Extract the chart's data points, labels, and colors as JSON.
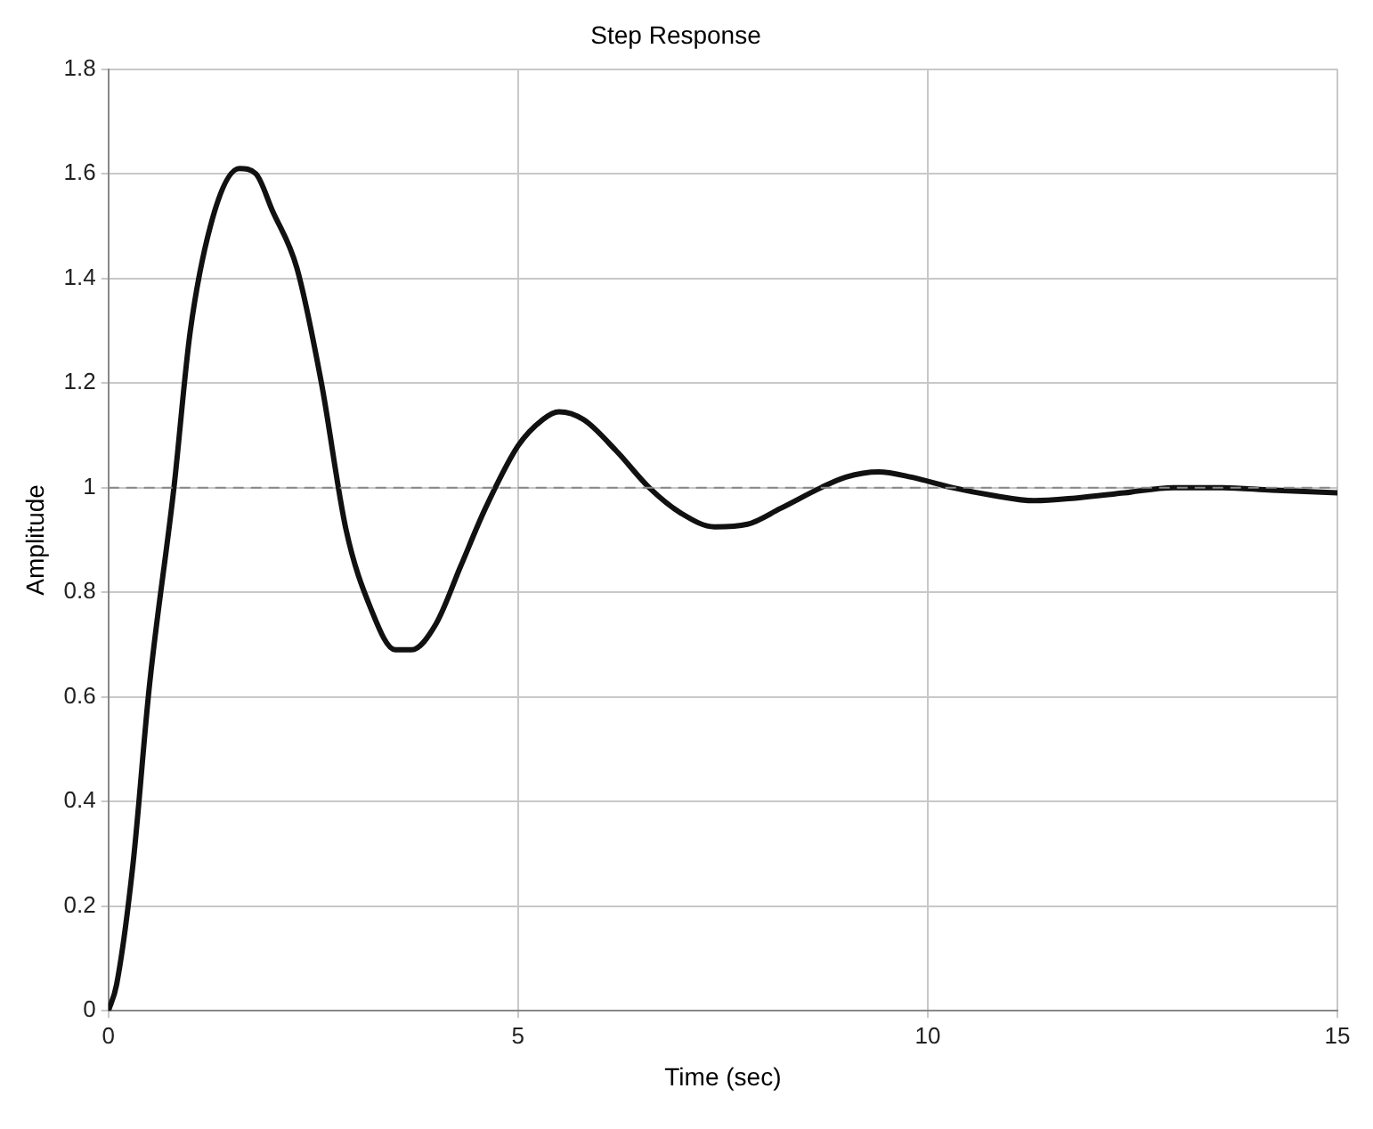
{
  "chart_data": {
    "type": "line",
    "title": "Step Response",
    "xlabel": "Time (sec)",
    "ylabel": "Amplitude",
    "x": [
      0,
      0.1,
      0.3,
      0.5,
      0.8,
      1.0,
      1.3,
      1.6,
      1.8,
      2.0,
      2.3,
      2.6,
      2.9,
      3.2,
      3.5,
      3.7,
      4.0,
      4.3,
      4.6,
      5.0,
      5.3,
      5.5,
      5.8,
      6.2,
      6.6,
      7.0,
      7.4,
      7.8,
      8.2,
      8.7,
      9.0,
      9.4,
      9.8,
      10.3,
      10.8,
      11.3,
      11.8,
      12.4,
      13.0,
      13.6,
      14.2,
      15
    ],
    "series": [
      {
        "color": "#111111",
        "values": [
          0,
          0.05,
          0.28,
          0.62,
          1.0,
          1.3,
          1.53,
          1.61,
          1.6,
          1.53,
          1.42,
          1.2,
          0.92,
          0.77,
          0.69,
          0.69,
          0.74,
          0.85,
          0.96,
          1.08,
          1.13,
          1.145,
          1.13,
          1.07,
          1.0,
          0.95,
          0.925,
          0.93,
          0.96,
          1.0,
          1.02,
          1.03,
          1.02,
          1.0,
          0.985,
          0.975,
          0.98,
          0.99,
          1.0,
          1.0,
          0.995,
          0.99
        ]
      }
    ],
    "xlim": [
      0,
      15
    ],
    "xticks": [
      0,
      5,
      10,
      15
    ],
    "ylim": [
      0,
      1.8
    ],
    "yticks": [
      0,
      0.2,
      0.4,
      0.6,
      0.8,
      1,
      1.2,
      1.4,
      1.6,
      1.8
    ],
    "grid": true,
    "marker": "none",
    "line_style": "solid",
    "legend": false,
    "ref_lines": [
      {
        "axis": "y",
        "value": 1,
        "color": "#888888",
        "line_style": "dashed"
      }
    ]
  }
}
